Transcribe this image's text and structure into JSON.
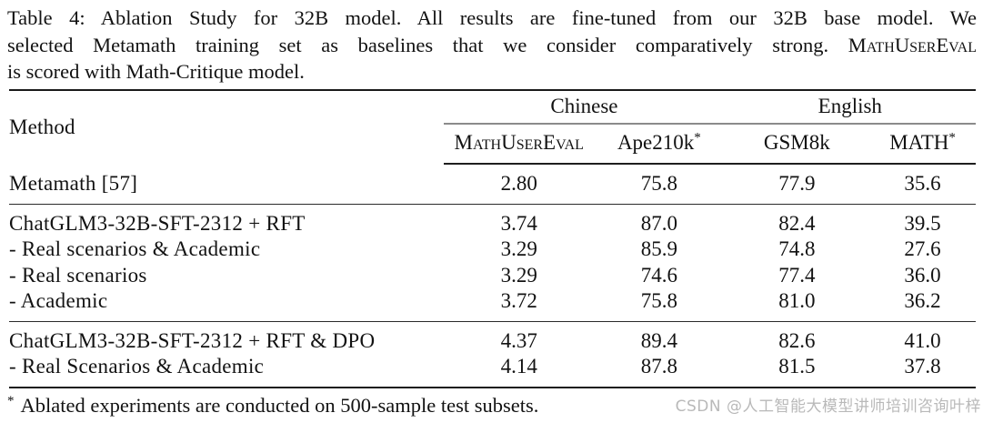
{
  "caption": {
    "line1": "Table 4: Ablation Study for 32B model. All results are fine-tuned from our 32B base model. We",
    "line2_text": "selected Metamath training set as baselines that we consider comparatively strong.",
    "line2_smallcaps": "MathUserEval",
    "line3": "is scored with Math-Critique model."
  },
  "table": {
    "method_header": "Method",
    "groups": [
      {
        "label": "Chinese"
      },
      {
        "label": "English"
      }
    ],
    "columns": [
      {
        "label": "MathUserEval",
        "sup": ""
      },
      {
        "label": "Ape210k",
        "sup": "*"
      },
      {
        "label": "GSM8k",
        "sup": ""
      },
      {
        "label": "MATH",
        "sup": "*"
      }
    ],
    "rows": [
      {
        "method": "Metamath [57]",
        "values": [
          "2.80",
          "75.8",
          "77.9",
          "35.6"
        ]
      },
      {
        "method": "ChatGLM3-32B-SFT-2312 + RFT",
        "values": [
          "3.74",
          "87.0",
          "82.4",
          "39.5"
        ]
      },
      {
        "method": "- Real scenarios & Academic",
        "values": [
          "3.29",
          "85.9",
          "74.8",
          "27.6"
        ]
      },
      {
        "method": "- Real scenarios",
        "values": [
          "3.29",
          "74.6",
          "77.4",
          "36.0"
        ]
      },
      {
        "method": "- Academic",
        "values": [
          "3.72",
          "75.8",
          "81.0",
          "36.2"
        ]
      },
      {
        "method": "ChatGLM3-32B-SFT-2312 + RFT & DPO",
        "values": [
          "4.37",
          "89.4",
          "82.6",
          "41.0"
        ]
      },
      {
        "method": "- Real Scenarios & Academic",
        "values": [
          "4.14",
          "87.8",
          "81.5",
          "37.8"
        ]
      }
    ]
  },
  "footnote": {
    "marker": "*",
    "text": "Ablated experiments are conducted on 500-sample test subsets."
  },
  "watermark": {
    "text": "CSDN @人工智能大模型讲师培训咨询叶梓",
    "color": "#b9b9b9"
  }
}
